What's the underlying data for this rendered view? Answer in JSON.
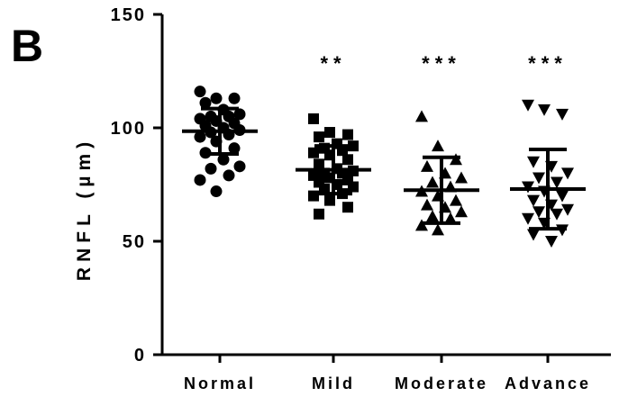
{
  "panel_label": "B",
  "chart_data": {
    "type": "scatter",
    "subtype": "dot-plot-mean-sd",
    "ylabel": "RNFL (µm)",
    "xlabel": "",
    "ylim": [
      0,
      150
    ],
    "yticks": [
      0,
      50,
      100,
      150
    ],
    "grid": false,
    "categories": [
      "Normal",
      "Mild",
      "Moderate",
      "Advance"
    ],
    "markers": [
      "circle",
      "square",
      "triangle-up",
      "triangle-down"
    ],
    "significance": [
      "",
      "**",
      "***",
      "***"
    ],
    "series": [
      {
        "values": [
          116,
          113,
          113,
          111,
          108,
          106,
          105,
          105,
          104,
          103,
          102,
          101,
          100,
          99,
          98,
          97,
          96,
          94,
          91,
          89,
          86,
          83,
          82,
          79,
          77,
          72
        ],
        "mean": 98.5,
        "sd": 10
      },
      {
        "values": [
          104,
          98,
          97,
          96,
          93,
          92,
          91,
          90,
          89,
          88,
          86,
          84,
          82,
          81,
          80,
          80,
          79,
          78,
          77,
          76,
          75,
          74,
          73,
          71,
          70,
          68,
          65,
          62
        ],
        "mean": 81.5,
        "sd": 10.5
      },
      {
        "values": [
          105,
          92,
          86,
          83,
          80,
          78,
          76,
          74,
          72,
          70,
          68,
          66,
          65,
          63,
          61,
          60,
          57,
          55
        ],
        "mean": 72.5,
        "sd": 14.5
      },
      {
        "values": [
          110,
          108,
          106,
          85,
          83,
          80,
          78,
          76,
          74,
          72,
          70,
          68,
          66,
          64,
          63,
          62,
          60,
          58,
          55,
          53,
          50
        ],
        "mean": 73,
        "sd": 17.5
      }
    ]
  }
}
